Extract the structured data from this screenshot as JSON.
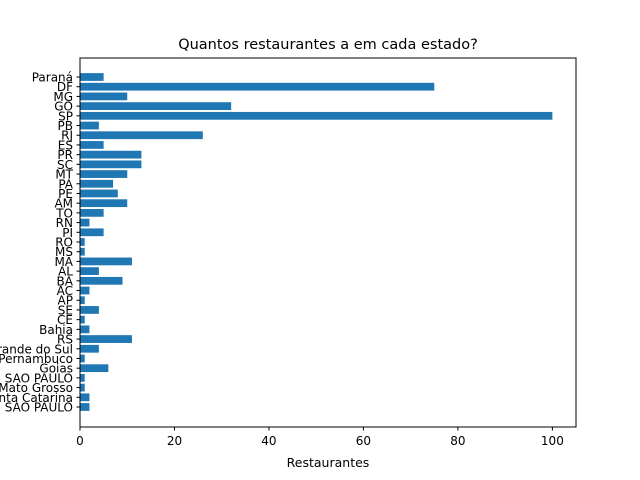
{
  "chart_data": {
    "type": "bar",
    "orientation": "horizontal",
    "title": "Quantos restaurantes a em cada estado?",
    "xlabel": "Restaurantes",
    "ylabel": "",
    "xlim": [
      0,
      105
    ],
    "xticks": [
      0,
      20,
      40,
      60,
      80,
      100
    ],
    "grid": false,
    "legend": "none",
    "bar_color": "#1f77b4",
    "categories": [
      "Paraná",
      "DF",
      "MG",
      "GO",
      "SP",
      "PB",
      "RJ",
      "ES",
      "PR",
      "SC",
      "MT",
      "PA",
      "PE",
      "AM",
      "TO",
      "RN",
      "PI",
      "RO",
      "MS",
      "MA",
      "AL",
      "BA",
      "AC",
      "AP",
      "SE",
      "CE",
      "Bahia",
      "RS",
      "Rio Grande do Sul",
      "Pernambuco",
      "Goias",
      "SAO PAULO",
      "Mato Grosso",
      "Santa Catarina",
      "SAO PAULO"
    ],
    "values": [
      5,
      75,
      10,
      32,
      100,
      4,
      26,
      5,
      13,
      13,
      10,
      7,
      8,
      10,
      5,
      2,
      5,
      1,
      1,
      11,
      4,
      9,
      2,
      1,
      4,
      1,
      2,
      11,
      4,
      1,
      6,
      1,
      1,
      2,
      2
    ]
  }
}
